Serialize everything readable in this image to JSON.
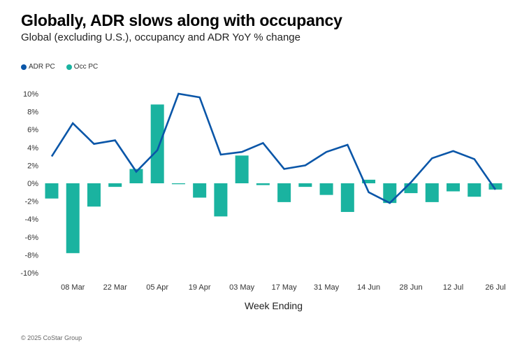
{
  "chart_data": {
    "type": "bar",
    "title": "Globally, ADR slows along with occupancy",
    "subtitle": "Global (excluding U.S.), occupancy and ADR YoY % change",
    "xlabel": "Week Ending",
    "ylabel": "",
    "ylim": [
      -10,
      10
    ],
    "yticks": [
      10,
      8,
      6,
      4,
      2,
      0,
      -2,
      -4,
      -6,
      -8,
      -10
    ],
    "ytick_labels": [
      "10%",
      "8%",
      "6%",
      "4%",
      "2%",
      "0%",
      "-2%",
      "-4%",
      "-6%",
      "-8%",
      "-10%"
    ],
    "categories": [
      "01 Mar",
      "08 Mar",
      "15 Mar",
      "22 Mar",
      "29 Mar",
      "05 Apr",
      "12 Apr",
      "19 Apr",
      "26 Apr",
      "03 May",
      "10 May",
      "17 May",
      "24 May",
      "31 May",
      "07 Jun",
      "14 Jun",
      "21 Jun",
      "28 Jun",
      "05 Jul",
      "12 Jul",
      "19 Jul",
      "26 Jul"
    ],
    "xtick_labels_shown": [
      "08 Mar",
      "22 Mar",
      "05 Apr",
      "19 Apr",
      "03 May",
      "17 May",
      "31 May",
      "14 Jun",
      "28 Jun",
      "12 Jul",
      "26 Jul"
    ],
    "legend_position": "top-left",
    "grid": false,
    "series": [
      {
        "name": "ADR PC",
        "type": "line",
        "color": "#0a56a8",
        "values": [
          3.0,
          6.7,
          4.4,
          4.8,
          1.3,
          3.7,
          10.0,
          9.6,
          3.2,
          3.5,
          4.5,
          1.6,
          2.0,
          3.5,
          4.3,
          -1.0,
          -2.2,
          0.1,
          2.8,
          3.6,
          2.7,
          -0.7
        ]
      },
      {
        "name": "Occ PC",
        "type": "bar",
        "color": "#1ab3a0",
        "values": [
          -1.7,
          -7.8,
          -2.6,
          -0.4,
          1.6,
          8.8,
          -0.1,
          -1.6,
          -3.7,
          3.1,
          -0.2,
          -2.1,
          -0.4,
          -1.3,
          -3.2,
          0.4,
          -2.2,
          -1.1,
          -2.1,
          -0.9,
          -1.5,
          -0.7
        ]
      }
    ]
  },
  "footer": {
    "copyright": "© 2025 CoStar Group"
  }
}
